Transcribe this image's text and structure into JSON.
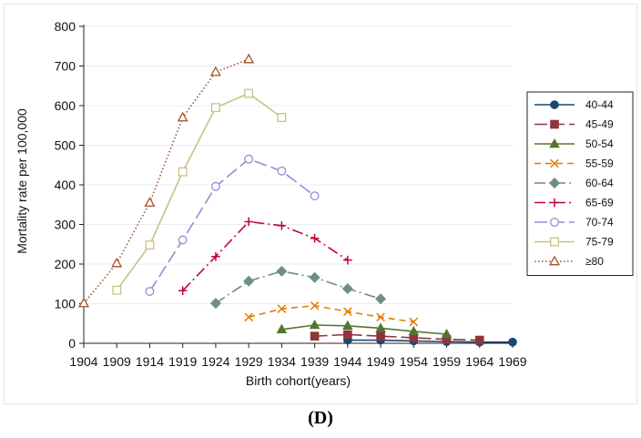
{
  "caption": "(D)",
  "chart_data": {
    "type": "line",
    "title": "",
    "xlabel": "Birth cohort(years)",
    "ylabel": "Mortality rate per 100,000",
    "xlim": [
      1904,
      1969
    ],
    "ylim": [
      0,
      800
    ],
    "xticks": [
      1904,
      1909,
      1914,
      1919,
      1924,
      1929,
      1934,
      1939,
      1944,
      1949,
      1954,
      1959,
      1964,
      1969
    ],
    "yticks": [
      0,
      100,
      200,
      300,
      400,
      500,
      600,
      700,
      800
    ],
    "grid": true,
    "legend_position": "right",
    "series": [
      {
        "name": "40-44",
        "color": "#1a476f",
        "marker": "circle-filled",
        "dash": "solid",
        "x": [
          1944,
          1949,
          1954,
          1959,
          1964,
          1969
        ],
        "y": [
          8,
          8,
          6,
          4,
          3,
          3
        ]
      },
      {
        "name": "45-49",
        "color": "#90353b",
        "marker": "square-filled",
        "dash": "long-dash",
        "x": [
          1939,
          1944,
          1949,
          1954,
          1959,
          1964
        ],
        "y": [
          18,
          22,
          18,
          14,
          10,
          8
        ]
      },
      {
        "name": "50-54",
        "color": "#55752f",
        "marker": "triangle-filled",
        "dash": "solid",
        "x": [
          1934,
          1939,
          1944,
          1949,
          1954,
          1959
        ],
        "y": [
          35,
          46,
          44,
          38,
          30,
          23
        ]
      },
      {
        "name": "55-59",
        "color": "#e37e00",
        "marker": "x",
        "dash": "dash",
        "x": [
          1929,
          1934,
          1939,
          1944,
          1949,
          1954
        ],
        "y": [
          66,
          87,
          95,
          80,
          66,
          54
        ]
      },
      {
        "name": "60-64",
        "color": "#6e8e84",
        "marker": "diamond-filled",
        "dash": "dash-dot",
        "x": [
          1924,
          1929,
          1934,
          1939,
          1944,
          1949
        ],
        "y": [
          101,
          157,
          182,
          166,
          138,
          112
        ]
      },
      {
        "name": "65-69",
        "color": "#c10534",
        "marker": "plus",
        "dash": "dash-dot",
        "x": [
          1919,
          1924,
          1929,
          1934,
          1939,
          1944
        ],
        "y": [
          133,
          219,
          307,
          297,
          265,
          210
        ]
      },
      {
        "name": "70-74",
        "color": "#938dd2",
        "marker": "circle-hollow",
        "dash": "long-dash",
        "x": [
          1914,
          1919,
          1924,
          1929,
          1934,
          1939
        ],
        "y": [
          131,
          261,
          396,
          465,
          435,
          372
        ]
      },
      {
        "name": "75-79",
        "color": "#cac27e",
        "marker": "square-hollow",
        "dash": "solid",
        "x": [
          1909,
          1914,
          1919,
          1924,
          1929,
          1934
        ],
        "y": [
          134,
          248,
          433,
          595,
          631,
          570
        ]
      },
      {
        "name": "≥80",
        "color": "#a0522d",
        "marker": "triangle-hollow",
        "dash": "dot",
        "x": [
          1904,
          1909,
          1914,
          1919,
          1924,
          1929
        ],
        "y": [
          101,
          202,
          355,
          570,
          685,
          717
        ]
      }
    ]
  }
}
